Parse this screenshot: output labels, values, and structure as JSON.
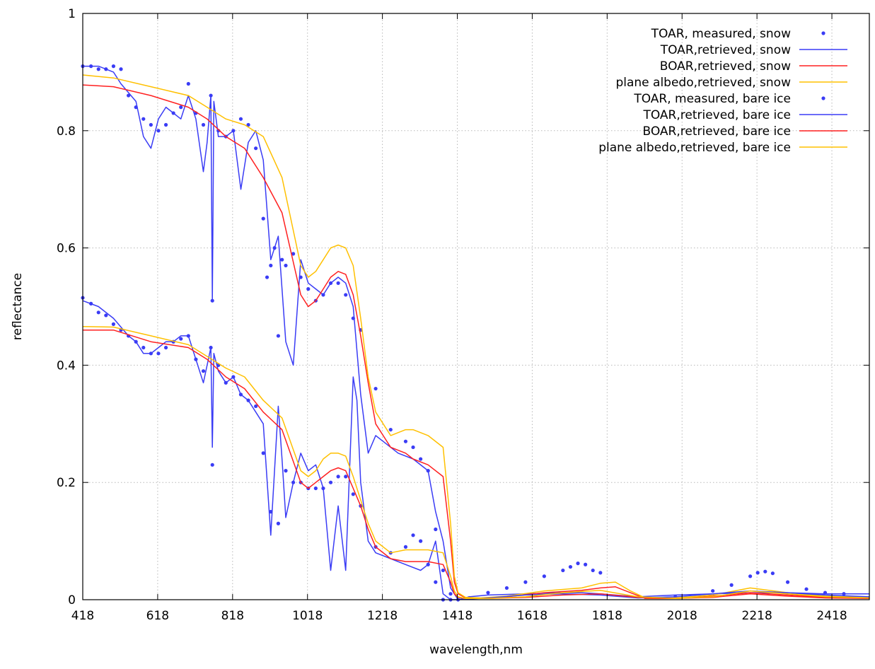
{
  "chart_data": {
    "type": "line",
    "title": "",
    "xlabel": "wavelength,nm",
    "ylabel": "reflectance",
    "xlim": [
      418,
      2518
    ],
    "ylim": [
      0,
      1
    ],
    "x_ticks": [
      418,
      618,
      818,
      1018,
      1218,
      1418,
      1618,
      1818,
      2018,
      2218,
      2418
    ],
    "y_ticks": [
      0,
      0.2,
      0.4,
      0.6,
      0.8,
      1
    ],
    "y_tick_labels": [
      "0",
      "0.2",
      "0.4",
      "0.6",
      "0.8",
      "1"
    ],
    "grid": true,
    "legend_position": "top-right",
    "series": [
      {
        "name": "TOAR, measured, snow",
        "style": "points",
        "color": "#3a3cf5",
        "x": [
          418,
          440,
          460,
          480,
          500,
          520,
          540,
          560,
          580,
          600,
          620,
          640,
          660,
          680,
          700,
          720,
          740,
          760,
          764,
          780,
          800,
          820,
          840,
          860,
          880,
          900,
          910,
          920,
          930,
          940,
          950,
          960,
          980,
          1000,
          1020,
          1040,
          1060,
          1080,
          1100,
          1120,
          1140,
          1160,
          1200,
          1240,
          1280,
          1300,
          1320,
          1340,
          1360,
          1380,
          1400,
          1420,
          1450,
          1500,
          1550,
          1600,
          1650,
          1700,
          1720,
          1740,
          1760,
          1780,
          1800,
          2000,
          2100,
          2150,
          2200,
          2220,
          2240,
          2260,
          2300,
          2350,
          2400,
          2450
        ],
        "y": [
          0.91,
          0.91,
          0.905,
          0.905,
          0.91,
          0.905,
          0.86,
          0.84,
          0.82,
          0.81,
          0.8,
          0.81,
          0.83,
          0.84,
          0.88,
          0.83,
          0.81,
          0.86,
          0.51,
          0.8,
          0.79,
          0.8,
          0.82,
          0.81,
          0.77,
          0.65,
          0.55,
          0.57,
          0.6,
          0.45,
          0.58,
          0.57,
          0.59,
          0.55,
          0.53,
          0.51,
          0.52,
          0.54,
          0.54,
          0.52,
          0.48,
          0.46,
          0.36,
          0.29,
          0.27,
          0.26,
          0.24,
          0.22,
          0.12,
          0.05,
          0.01,
          0.0,
          0.003,
          0.012,
          0.02,
          0.03,
          0.04,
          0.05,
          0.056,
          0.062,
          0.06,
          0.05,
          0.046,
          0.005,
          0.015,
          0.025,
          0.04,
          0.046,
          0.048,
          0.045,
          0.03,
          0.018,
          0.012,
          0.01
        ]
      },
      {
        "name": "TOAR,retrieved, snow",
        "style": "line",
        "color": "#3a3cf5",
        "x": [
          418,
          460,
          500,
          520,
          560,
          580,
          600,
          620,
          640,
          660,
          680,
          700,
          720,
          740,
          750,
          760,
          764,
          768,
          780,
          800,
          820,
          840,
          860,
          880,
          900,
          920,
          940,
          960,
          980,
          1000,
          1020,
          1040,
          1060,
          1080,
          1100,
          1120,
          1140,
          1160,
          1180,
          1200,
          1220,
          1260,
          1300,
          1340,
          1360,
          1380,
          1400,
          1420,
          1450,
          1500,
          1600,
          1700,
          1750,
          1800,
          1900,
          2000,
          2100,
          2200,
          2300,
          2400,
          2518
        ],
        "y": [
          0.91,
          0.91,
          0.9,
          0.88,
          0.85,
          0.79,
          0.77,
          0.82,
          0.84,
          0.83,
          0.82,
          0.86,
          0.82,
          0.73,
          0.78,
          0.86,
          0.51,
          0.85,
          0.79,
          0.79,
          0.8,
          0.7,
          0.78,
          0.8,
          0.75,
          0.58,
          0.62,
          0.44,
          0.4,
          0.58,
          0.54,
          0.53,
          0.52,
          0.54,
          0.55,
          0.54,
          0.5,
          0.35,
          0.25,
          0.28,
          0.27,
          0.25,
          0.24,
          0.22,
          0.15,
          0.1,
          0.02,
          0.0,
          0.005,
          0.008,
          0.01,
          0.012,
          0.012,
          0.01,
          0.005,
          0.008,
          0.01,
          0.012,
          0.012,
          0.01,
          0.01
        ]
      },
      {
        "name": "BOAR,retrieved, snow",
        "style": "line",
        "color": "#ff2020",
        "x": [
          418,
          500,
          600,
          700,
          750,
          800,
          850,
          900,
          950,
          1000,
          1020,
          1040,
          1060,
          1080,
          1100,
          1120,
          1140,
          1160,
          1180,
          1200,
          1240,
          1280,
          1300,
          1340,
          1380,
          1400,
          1410,
          1420,
          1440,
          1480,
          1550,
          1650,
          1750,
          1800,
          1840,
          1880,
          1920,
          2000,
          2100,
          2200,
          2300,
          2400,
          2518
        ],
        "y": [
          0.878,
          0.875,
          0.86,
          0.84,
          0.82,
          0.79,
          0.77,
          0.72,
          0.66,
          0.52,
          0.5,
          0.51,
          0.53,
          0.55,
          0.56,
          0.555,
          0.52,
          0.45,
          0.37,
          0.3,
          0.26,
          0.25,
          0.24,
          0.23,
          0.21,
          0.1,
          0.03,
          0.01,
          0.003,
          0.002,
          0.005,
          0.012,
          0.016,
          0.02,
          0.022,
          0.012,
          0.002,
          0.002,
          0.006,
          0.012,
          0.008,
          0.004,
          0.003
        ]
      },
      {
        "name": "plane albedo,retrieved, snow",
        "style": "line",
        "color": "#ffc000",
        "x": [
          418,
          500,
          600,
          700,
          750,
          800,
          850,
          900,
          950,
          1000,
          1020,
          1040,
          1060,
          1080,
          1100,
          1120,
          1140,
          1160,
          1180,
          1200,
          1240,
          1280,
          1300,
          1340,
          1380,
          1400,
          1410,
          1420,
          1440,
          1480,
          1550,
          1650,
          1750,
          1800,
          1840,
          1880,
          1920,
          2000,
          2100,
          2200,
          2300,
          2400,
          2518
        ],
        "y": [
          0.895,
          0.89,
          0.875,
          0.86,
          0.84,
          0.82,
          0.81,
          0.79,
          0.72,
          0.57,
          0.55,
          0.56,
          0.58,
          0.6,
          0.605,
          0.6,
          0.57,
          0.48,
          0.38,
          0.32,
          0.28,
          0.29,
          0.29,
          0.28,
          0.26,
          0.13,
          0.04,
          0.012,
          0.004,
          0.003,
          0.006,
          0.015,
          0.02,
          0.028,
          0.03,
          0.015,
          0.003,
          0.003,
          0.008,
          0.02,
          0.012,
          0.006,
          0.004
        ]
      },
      {
        "name": "TOAR, measured, bare ice",
        "style": "points",
        "color": "#3a3cf5",
        "x": [
          418,
          440,
          460,
          480,
          500,
          520,
          540,
          560,
          580,
          600,
          620,
          640,
          660,
          680,
          700,
          720,
          740,
          760,
          764,
          780,
          800,
          820,
          840,
          860,
          880,
          900,
          920,
          940,
          960,
          980,
          1000,
          1020,
          1040,
          1060,
          1080,
          1100,
          1120,
          1140,
          1160,
          1200,
          1240,
          1280,
          1300,
          1320,
          1340,
          1360,
          1380,
          1400
        ],
        "y": [
          0.515,
          0.505,
          0.49,
          0.485,
          0.47,
          0.46,
          0.45,
          0.44,
          0.43,
          0.42,
          0.42,
          0.43,
          0.44,
          0.445,
          0.45,
          0.41,
          0.39,
          0.43,
          0.23,
          0.4,
          0.37,
          0.38,
          0.35,
          0.34,
          0.33,
          0.25,
          0.15,
          0.13,
          0.22,
          0.2,
          0.2,
          0.19,
          0.19,
          0.19,
          0.2,
          0.21,
          0.21,
          0.18,
          0.16,
          0.09,
          0.08,
          0.09,
          0.11,
          0.1,
          0.06,
          0.03,
          0.0,
          0.0
        ]
      },
      {
        "name": "TOAR,retrieved, bare ice",
        "style": "line",
        "color": "#3a3cf5",
        "x": [
          418,
          460,
          500,
          540,
          560,
          580,
          600,
          620,
          640,
          660,
          680,
          700,
          720,
          740,
          750,
          760,
          764,
          768,
          780,
          800,
          820,
          840,
          860,
          880,
          900,
          920,
          940,
          950,
          960,
          980,
          1000,
          1020,
          1040,
          1060,
          1080,
          1100,
          1120,
          1140,
          1150,
          1160,
          1180,
          1200,
          1240,
          1280,
          1320,
          1340,
          1360,
          1380,
          1400,
          1420,
          1500,
          1600,
          1700,
          1800,
          1900,
          2000,
          2100,
          2200,
          2300,
          2400,
          2518
        ],
        "y": [
          0.51,
          0.5,
          0.48,
          0.45,
          0.44,
          0.42,
          0.42,
          0.43,
          0.44,
          0.44,
          0.45,
          0.45,
          0.41,
          0.37,
          0.4,
          0.43,
          0.26,
          0.42,
          0.39,
          0.37,
          0.38,
          0.35,
          0.34,
          0.32,
          0.3,
          0.11,
          0.33,
          0.24,
          0.14,
          0.2,
          0.25,
          0.22,
          0.23,
          0.19,
          0.05,
          0.16,
          0.05,
          0.38,
          0.34,
          0.2,
          0.1,
          0.08,
          0.07,
          0.06,
          0.05,
          0.06,
          0.1,
          0.01,
          0.0,
          0.0,
          0.003,
          0.008,
          0.01,
          0.008,
          0.003,
          0.005,
          0.01,
          0.015,
          0.012,
          0.008,
          0.005
        ]
      },
      {
        "name": "BOAR,retrieved, bare ice",
        "style": "line",
        "color": "#ff2020",
        "x": [
          418,
          500,
          600,
          700,
          750,
          800,
          850,
          900,
          950,
          1000,
          1020,
          1040,
          1060,
          1080,
          1100,
          1120,
          1140,
          1160,
          1180,
          1200,
          1240,
          1280,
          1300,
          1340,
          1380,
          1400,
          1410,
          1420,
          1440,
          1500,
          1600,
          1700,
          1800,
          1900,
          2000,
          2100,
          2200,
          2300,
          2400,
          2518
        ],
        "y": [
          0.46,
          0.46,
          0.44,
          0.43,
          0.41,
          0.38,
          0.36,
          0.32,
          0.29,
          0.2,
          0.19,
          0.2,
          0.21,
          0.22,
          0.225,
          0.22,
          0.19,
          0.16,
          0.12,
          0.09,
          0.07,
          0.065,
          0.065,
          0.065,
          0.06,
          0.03,
          0.01,
          0.004,
          0.002,
          0.002,
          0.004,
          0.008,
          0.01,
          0.004,
          0.002,
          0.004,
          0.01,
          0.006,
          0.003,
          0.002
        ]
      },
      {
        "name": "plane albedo,retrieved, bare ice",
        "style": "line",
        "color": "#ffc000",
        "x": [
          418,
          500,
          600,
          700,
          750,
          800,
          850,
          900,
          950,
          1000,
          1020,
          1040,
          1060,
          1080,
          1100,
          1120,
          1140,
          1160,
          1180,
          1200,
          1240,
          1280,
          1300,
          1340,
          1380,
          1400,
          1410,
          1420,
          1440,
          1500,
          1600,
          1700,
          1800,
          1900,
          2000,
          2100,
          2200,
          2300,
          2400,
          2518
        ],
        "y": [
          0.466,
          0.465,
          0.45,
          0.435,
          0.415,
          0.395,
          0.38,
          0.34,
          0.31,
          0.22,
          0.21,
          0.22,
          0.24,
          0.25,
          0.25,
          0.245,
          0.21,
          0.17,
          0.13,
          0.1,
          0.08,
          0.085,
          0.085,
          0.085,
          0.08,
          0.04,
          0.015,
          0.005,
          0.002,
          0.002,
          0.005,
          0.012,
          0.016,
          0.005,
          0.002,
          0.005,
          0.015,
          0.01,
          0.005,
          0.003
        ]
      }
    ]
  }
}
